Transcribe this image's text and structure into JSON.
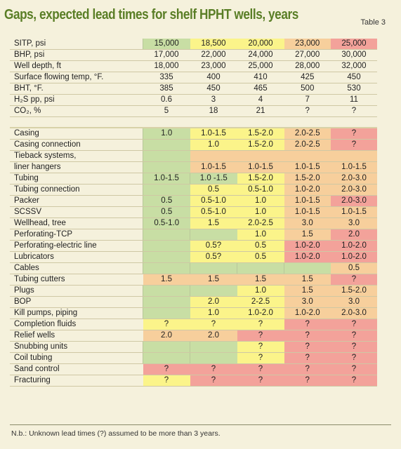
{
  "title": "Gaps, expected lead times for shelf HPHT wells, years",
  "table_ref": "Table 3",
  "colors": {
    "green": "#c8dea4",
    "yellow": "#fbf48a",
    "orange": "#f7cf9c",
    "red": "#f3a29a"
  },
  "rows": [
    {
      "label": "SITP, psi",
      "values": [
        "15,000",
        "18,500",
        "20,000",
        "23,000",
        "25,000"
      ],
      "colors": [
        "green",
        "yellow",
        "yellow",
        "orange",
        "red"
      ]
    },
    {
      "label": "BHP, psi",
      "values": [
        "17,000",
        "22,000",
        "24,000",
        "27,000",
        "30,000"
      ],
      "colors": [
        "blank",
        "blank",
        "blank",
        "blank",
        "blank"
      ]
    },
    {
      "label": "Well depth, ft",
      "values": [
        "18,000",
        "23,000",
        "25,000",
        "28,000",
        "32,000"
      ],
      "colors": [
        "blank",
        "blank",
        "blank",
        "blank",
        "blank"
      ]
    },
    {
      "label": "Surface flowing temp, °F.",
      "values": [
        "335",
        "400",
        "410",
        "425",
        "450"
      ],
      "colors": [
        "blank",
        "blank",
        "blank",
        "blank",
        "blank"
      ]
    },
    {
      "label": "BHT, °F.",
      "values": [
        "385",
        "450",
        "465",
        "500",
        "530"
      ],
      "colors": [
        "blank",
        "blank",
        "blank",
        "blank",
        "blank"
      ]
    },
    {
      "label": "H₂S pp, psi",
      "values": [
        "0.6",
        "3",
        "4",
        "7",
        "11"
      ],
      "colors": [
        "blank",
        "blank",
        "blank",
        "blank",
        "blank"
      ]
    },
    {
      "label": "CO₂, %",
      "values": [
        "5",
        "18",
        "21",
        "?",
        "?"
      ],
      "colors": [
        "blank",
        "blank",
        "blank",
        "blank",
        "blank"
      ]
    },
    {
      "label": "",
      "values": [
        "",
        "",
        "",
        "",
        ""
      ],
      "colors": [
        "blank",
        "blank",
        "blank",
        "blank",
        "blank"
      ],
      "gap": true
    },
    {
      "label": "Casing",
      "values": [
        "1.0",
        "1.0-1.5",
        "1.5-2.0",
        "2.0-2.5",
        "?"
      ],
      "colors": [
        "green",
        "yellow",
        "yellow",
        "orange",
        "red"
      ],
      "section": true
    },
    {
      "label": "Casing connection",
      "values": [
        "",
        "1.0",
        "1.5-2.0",
        "2.0-2.5",
        "?"
      ],
      "colors": [
        "green",
        "yellow",
        "yellow",
        "orange",
        "red"
      ]
    },
    {
      "label": "Tieback systems,",
      "values": [
        "",
        "",
        "",
        "",
        ""
      ],
      "colors": [
        "green",
        "orange",
        "orange",
        "orange",
        "orange"
      ]
    },
    {
      "label": "  liner hangers",
      "values": [
        "",
        "1.0-1.5",
        "1.0-1.5",
        "1.0-1.5",
        "1.0-1.5"
      ],
      "colors": [
        "green",
        "orange",
        "orange",
        "orange",
        "orange"
      ]
    },
    {
      "label": "Tubing",
      "values": [
        "1.0-1.5",
        "1.0 -1.5",
        "1.5-2.0",
        "1.5-2.0",
        "2.0-3.0"
      ],
      "colors": [
        "green",
        "green",
        "yellow",
        "orange",
        "orange"
      ]
    },
    {
      "label": "Tubing connection",
      "values": [
        "",
        "0.5",
        "0.5-1.0",
        "1.0-2.0",
        "2.0-3.0"
      ],
      "colors": [
        "green",
        "yellow",
        "yellow",
        "orange",
        "orange"
      ]
    },
    {
      "label": "Packer",
      "values": [
        "0.5",
        "0.5-1.0",
        "1.0",
        "1.0-1.5",
        "2.0-3.0"
      ],
      "colors": [
        "green",
        "yellow",
        "yellow",
        "orange",
        "red"
      ]
    },
    {
      "label": "SCSSV",
      "values": [
        "0.5",
        "0.5-1.0",
        "1.0",
        "1.0-1.5",
        "1.0-1.5"
      ],
      "colors": [
        "green",
        "yellow",
        "yellow",
        "orange",
        "orange"
      ]
    },
    {
      "label": "Wellhead, tree",
      "values": [
        "0.5-1.0",
        "1.5",
        "2.0-2.5",
        "3.0",
        "3.0"
      ],
      "colors": [
        "green",
        "yellow",
        "yellow",
        "orange",
        "orange"
      ]
    },
    {
      "label": "Perforating-TCP",
      "values": [
        "",
        "",
        "1.0",
        "1.5",
        "2.0"
      ],
      "colors": [
        "green",
        "green",
        "yellow",
        "orange",
        "red"
      ]
    },
    {
      "label": "Perforating-electric line",
      "values": [
        "",
        "0.5?",
        "0.5",
        "1.0-2.0",
        "1.0-2.0"
      ],
      "colors": [
        "green",
        "yellow",
        "yellow",
        "red",
        "red"
      ]
    },
    {
      "label": "Lubricators",
      "values": [
        "",
        "0.5?",
        "0.5",
        "1.0-2.0",
        "1.0-2.0"
      ],
      "colors": [
        "green",
        "yellow",
        "yellow",
        "red",
        "red"
      ]
    },
    {
      "label": "Cables",
      "values": [
        "",
        "",
        "",
        "",
        "0.5"
      ],
      "colors": [
        "green",
        "green",
        "green",
        "green",
        "orange"
      ]
    },
    {
      "label": "Tubing cutters",
      "values": [
        "1.5",
        "1.5",
        "1.5",
        "1.5",
        "?"
      ],
      "colors": [
        "orange",
        "orange",
        "orange",
        "orange",
        "red"
      ]
    },
    {
      "label": "Plugs",
      "values": [
        "",
        "",
        "1.0",
        "1.5",
        "1.5-2.0"
      ],
      "colors": [
        "green",
        "green",
        "yellow",
        "orange",
        "orange"
      ]
    },
    {
      "label": "BOP",
      "values": [
        "",
        "2.0",
        "2-2.5",
        "3.0",
        "3.0"
      ],
      "colors": [
        "green",
        "yellow",
        "yellow",
        "orange",
        "orange"
      ]
    },
    {
      "label": "Kill pumps, piping",
      "values": [
        "",
        "1.0",
        "1.0-2.0",
        "1.0-2.0",
        "2.0-3.0"
      ],
      "colors": [
        "green",
        "yellow",
        "yellow",
        "orange",
        "orange"
      ]
    },
    {
      "label": "Completion fluids",
      "values": [
        "?",
        "?",
        "?",
        "?",
        "?"
      ],
      "colors": [
        "yellow",
        "yellow",
        "yellow",
        "red",
        "red"
      ]
    },
    {
      "label": "Relief wells",
      "values": [
        "2.0",
        "2.0",
        "?",
        "?",
        "?"
      ],
      "colors": [
        "orange",
        "orange",
        "red",
        "red",
        "red"
      ]
    },
    {
      "label": "Snubbing units",
      "values": [
        "",
        "",
        "?",
        "?",
        "?"
      ],
      "colors": [
        "green",
        "green",
        "yellow",
        "red",
        "red"
      ]
    },
    {
      "label": "Coil tubing",
      "values": [
        "",
        "",
        "?",
        "?",
        "?"
      ],
      "colors": [
        "green",
        "green",
        "yellow",
        "red",
        "red"
      ]
    },
    {
      "label": "Sand control",
      "values": [
        "?",
        "?",
        "?",
        "?",
        "?"
      ],
      "colors": [
        "red",
        "red",
        "red",
        "red",
        "red"
      ]
    },
    {
      "label": "Fracturing",
      "values": [
        "?",
        "?",
        "?",
        "?",
        "?"
      ],
      "colors": [
        "yellow",
        "red",
        "red",
        "red",
        "red"
      ]
    }
  ],
  "footnote": "N.b.: Unknown lead times (?) assumed to be more than 3 years."
}
